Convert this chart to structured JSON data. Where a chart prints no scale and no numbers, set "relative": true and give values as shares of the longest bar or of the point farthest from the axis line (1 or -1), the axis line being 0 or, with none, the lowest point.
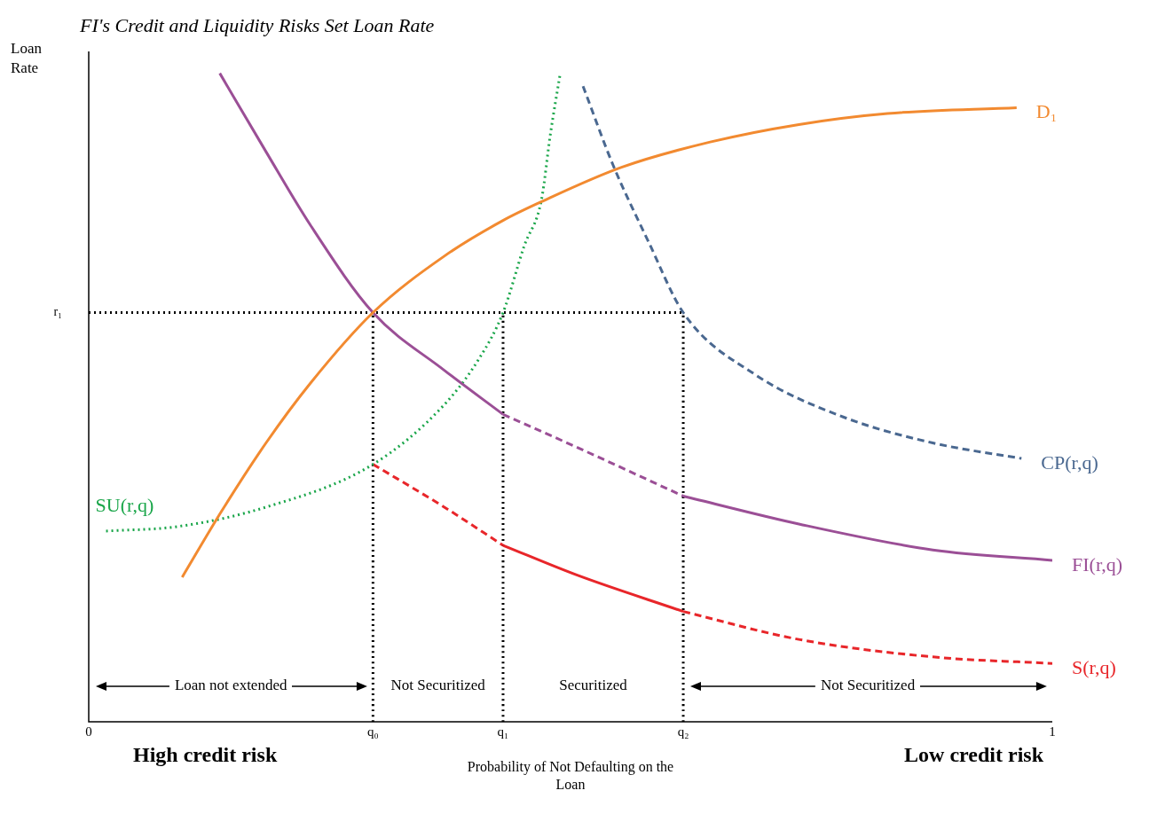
{
  "chart_data": {
    "type": "line",
    "relative": true,
    "title": "FI's Credit and Liquidity Risks Set Loan Rate",
    "xlabel": "Probability of Not Defaulting on the Loan",
    "ylabel": "Loan Rate",
    "xlim": [
      0,
      1
    ],
    "xticks": [
      0,
      {
        "value": 0.295,
        "label": "q₀"
      },
      {
        "value": 0.43,
        "label": "q₁"
      },
      {
        "value": 0.617,
        "label": "q₂"
      },
      1
    ],
    "series": [
      {
        "name": "D₁",
        "color": "#f28a30",
        "line_style": "solid",
        "x": [
          0.097,
          0.138,
          0.184,
          0.23,
          0.295,
          0.369,
          0.43,
          0.47,
          0.553,
          0.645,
          0.737,
          0.829,
          0.963
        ],
        "values": [
          0.223,
          0.325,
          0.43,
          0.522,
          0.631,
          0.718,
          0.773,
          0.802,
          0.855,
          0.894,
          0.921,
          0.938,
          0.947
        ]
      },
      {
        "color": "#9b4f96",
        "line_style": "solid",
        "x": [
          0.136,
          0.184,
          0.23,
          0.295,
          0.369,
          0.43
        ],
        "values": [
          1.0,
          0.879,
          0.766,
          0.631,
          0.542,
          0.474
        ]
      },
      {
        "color": "#9b4f96",
        "line_style": "dashed",
        "x": [
          0.43,
          0.507,
          0.617
        ],
        "values": [
          0.474,
          0.423,
          0.348
        ]
      },
      {
        "name": "FI(r,q)",
        "color": "#9b4f96",
        "line_style": "solid",
        "x": [
          0.617,
          0.737,
          0.876,
          1.0
        ],
        "values": [
          0.348,
          0.305,
          0.265,
          0.249
        ]
      },
      {
        "name": "SU(r,q)",
        "color": "#1aa64a",
        "line_style": "dotted",
        "x": [
          0.018,
          0.092,
          0.184,
          0.295,
          0.369,
          0.406,
          0.43,
          0.452,
          0.47,
          0.479,
          0.489
        ],
        "values": [
          0.294,
          0.301,
          0.331,
          0.397,
          0.489,
          0.562,
          0.631,
          0.734,
          0.806,
          0.905,
          0.997
        ]
      },
      {
        "name": "CP(r,q)",
        "color": "#4a6890",
        "line_style": "dashed",
        "x": [
          0.513,
          0.544,
          0.581,
          0.617,
          0.691,
          0.783,
          0.876,
          0.968
        ],
        "values": [
          0.98,
          0.859,
          0.74,
          0.631,
          0.536,
          0.47,
          0.43,
          0.406
        ]
      },
      {
        "color": "#e8262a",
        "line_style": "dashed",
        "x": [
          0.295,
          0.369,
          0.43
        ],
        "values": [
          0.397,
          0.331,
          0.272
        ]
      },
      {
        "color": "#e8262a",
        "line_style": "solid",
        "x": [
          0.43,
          0.507,
          0.617
        ],
        "values": [
          0.272,
          0.226,
          0.17
        ]
      },
      {
        "name": "S(r,q)",
        "color": "#e8262a",
        "line_style": "dashed",
        "x": [
          0.617,
          0.737,
          0.876,
          1.0
        ],
        "values": [
          0.17,
          0.127,
          0.1,
          0.09
        ]
      },
      {
        "color": "#000000",
        "line_style": "dotted",
        "x": [
          0,
          0.617
        ],
        "values": [
          0.631,
          0.631
        ]
      },
      {
        "color": "#000000",
        "line_style": "dotted",
        "x": [
          0.295,
          0.295
        ],
        "values": [
          0,
          0.631
        ]
      },
      {
        "color": "#000000",
        "line_style": "dotted",
        "x": [
          0.43,
          0.43
        ],
        "values": [
          0,
          0.631
        ]
      },
      {
        "color": "#000000",
        "line_style": "dotted",
        "x": [
          0.617,
          0.617
        ],
        "values": [
          0,
          0.631
        ]
      }
    ],
    "marker": "none",
    "annotations": [
      "High credit risk",
      "Low credit risk",
      {
        "text": "r₁",
        "x": 0,
        "y": 0.631
      },
      "Loan not extended",
      "Not Securitized",
      "Securitized",
      "Not Securitized"
    ]
  }
}
